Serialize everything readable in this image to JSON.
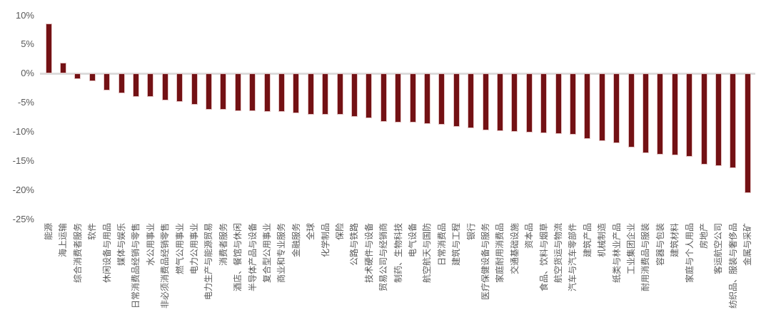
{
  "chart_data": {
    "type": "bar",
    "title": "",
    "ylabel": "",
    "xlabel": "",
    "unit": "%",
    "ylim": [
      -25,
      10
    ],
    "y_ticks": [
      10,
      5,
      0,
      -5,
      -10,
      -15,
      -20,
      -25
    ],
    "grid": false,
    "legend": null,
    "bar_color": "#731114",
    "bar_edge_color": "#e3c3c3",
    "axis_line_color": "#dcdcdc",
    "label_color": "#595959",
    "categories": [
      "能源",
      "海上运输",
      "综合消费者服务",
      "软件",
      "休闲设备与用品",
      "媒体与娱乐",
      "日常消费品经销与零售",
      "水公用事业",
      "非必须消费品经销零售",
      "燃气公用事业",
      "电力公用事业",
      "电力生产与能源贸易",
      "消费者服务",
      "酒店、餐馆与休闲",
      "半导体产品与设备",
      "复合型公用事业",
      "商业和专业服务",
      "金融服务",
      "全球",
      "化学制品",
      "保险",
      "公路与铁路",
      "技术硬件与设备",
      "贸易公司与经销商",
      "制药、生物科技",
      "电气设备",
      "航空航天与国防",
      "日常消费品",
      "建筑与工程",
      "银行",
      "医疗保健设备与服务",
      "家庭耐用消费品",
      "交通基础设施",
      "资本品",
      "食品、饮料与烟草",
      "航空货运与物流",
      "汽车与汽车零部件",
      "建筑产品",
      "机械制造",
      "纸类与林业产品",
      "工业集团企业",
      "耐用消费品与服装",
      "容器与包装",
      "建筑材料",
      "家庭与个人用品",
      "房地产",
      "客运航空公司",
      "纺织品、服装与奢侈品",
      "金属与采矿"
    ],
    "values": [
      8.6,
      1.9,
      -0.9,
      -1.3,
      -2.9,
      -3.4,
      -4.0,
      -4.0,
      -4.6,
      -4.8,
      -5.3,
      -6.2,
      -6.2,
      -6.4,
      -6.4,
      -6.6,
      -6.6,
      -6.8,
      -7.0,
      -7.1,
      -7.1,
      -7.4,
      -7.7,
      -8.3,
      -8.4,
      -8.4,
      -8.6,
      -8.8,
      -9.1,
      -9.4,
      -9.7,
      -9.9,
      -10.0,
      -10.1,
      -10.2,
      -10.3,
      -10.5,
      -11.2,
      -11.6,
      -11.9,
      -12.7,
      -13.6,
      -13.9,
      -14.0,
      -14.3,
      -15.6,
      -15.9,
      -16.2,
      -20.5
    ]
  }
}
